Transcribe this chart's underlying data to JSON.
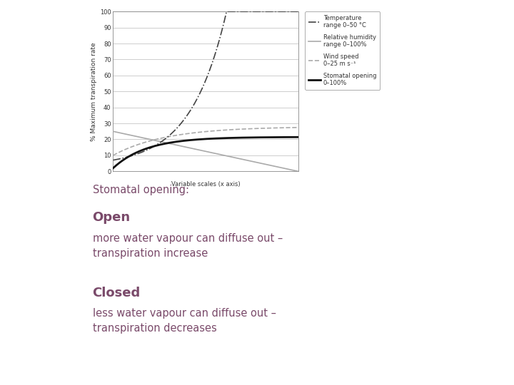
{
  "bg_color": "#ffffff",
  "chart_bg": "#ffffff",
  "ylabel": "% Maximum transpiration rate",
  "xlabel": "Variable scales (x axis)",
  "ylim": [
    0,
    100
  ],
  "xlim": [
    0,
    10
  ],
  "yticks": [
    0,
    10,
    20,
    30,
    40,
    50,
    60,
    70,
    80,
    90,
    100
  ],
  "grid_color": "#bbbbbb",
  "text_color": "#7a4a6a",
  "legend_entries": [
    {
      "label": "Temperature\nrange 0–50 °C",
      "linestyle": "-.",
      "color": "#444444",
      "linewidth": 1.2
    },
    {
      "label": "Relative humidity\nrange 0–100%",
      "linestyle": "-",
      "color": "#aaaaaa",
      "linewidth": 1.2
    },
    {
      "label": "Wind speed\n0–25 m s⁻¹",
      "linestyle": "--",
      "color": "#aaaaaa",
      "linewidth": 1.2
    },
    {
      "label": "Stomatal opening\n0–100%",
      "linestyle": "-",
      "color": "#111111",
      "linewidth": 2.0
    }
  ],
  "stomatal_opening_label": "Stomatal opening:",
  "open_heading": "Open",
  "open_body": "more water vapour can diffuse out –\ntranspiration increase",
  "closed_heading": "Closed",
  "closed_body": "less water vapour can diffuse out –\ntranspiration decreases"
}
